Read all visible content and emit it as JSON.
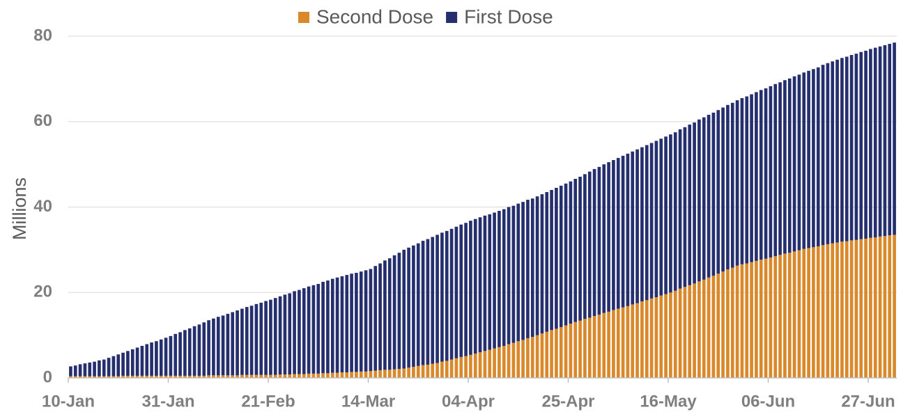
{
  "chart_data": {
    "type": "stacked_bar",
    "y_label": "Millions",
    "ylim": [
      0,
      80
    ],
    "yticks": [
      0,
      20,
      40,
      60,
      80
    ],
    "grid": true,
    "legend": "top",
    "categories": [
      "10-Jan",
      null,
      null,
      null,
      null,
      null,
      null,
      null,
      null,
      null,
      null,
      null,
      null,
      null,
      null,
      null,
      null,
      null,
      null,
      null,
      null,
      "31-Jan",
      null,
      null,
      null,
      null,
      null,
      null,
      null,
      null,
      null,
      null,
      null,
      null,
      null,
      null,
      null,
      null,
      null,
      null,
      null,
      null,
      "21-Feb",
      null,
      null,
      null,
      null,
      null,
      null,
      null,
      null,
      null,
      null,
      null,
      null,
      null,
      null,
      null,
      null,
      null,
      null,
      null,
      null,
      "14-Mar",
      null,
      null,
      null,
      null,
      null,
      null,
      null,
      null,
      null,
      null,
      null,
      null,
      null,
      null,
      null,
      null,
      null,
      null,
      null,
      null,
      "04-Apr",
      null,
      null,
      null,
      null,
      null,
      null,
      null,
      null,
      null,
      null,
      null,
      null,
      null,
      null,
      null,
      null,
      null,
      null,
      null,
      null,
      "25-Apr",
      null,
      null,
      null,
      null,
      null,
      null,
      null,
      null,
      null,
      null,
      null,
      null,
      null,
      null,
      null,
      null,
      null,
      null,
      null,
      null,
      "16-May",
      null,
      null,
      null,
      null,
      null,
      null,
      null,
      null,
      null,
      null,
      null,
      null,
      null,
      null,
      null,
      null,
      null,
      null,
      null,
      null,
      "06-Jun",
      null,
      null,
      null,
      null,
      null,
      null,
      null,
      null,
      null,
      null,
      null,
      null,
      null,
      null,
      null,
      null,
      null,
      null,
      null,
      null,
      "27-Jun",
      null,
      null,
      null,
      null,
      null
    ],
    "series": [
      {
        "name": "Second Dose",
        "color": "#d9882a",
        "values": [
          0.4,
          0.4,
          0.4,
          0.4,
          0.4,
          0.4,
          0.4,
          0.4,
          0.4,
          0.4,
          0.4,
          0.5,
          0.5,
          0.5,
          0.5,
          0.5,
          0.5,
          0.5,
          0.5,
          0.5,
          0.5,
          0.5,
          0.5,
          0.5,
          0.5,
          0.5,
          0.5,
          0.5,
          0.5,
          0.6,
          0.6,
          0.6,
          0.6,
          0.6,
          0.6,
          0.6,
          0.7,
          0.7,
          0.7,
          0.7,
          0.7,
          0.7,
          0.7,
          0.7,
          0.8,
          0.8,
          0.8,
          0.9,
          0.9,
          0.9,
          1.0,
          1.0,
          1.0,
          1.1,
          1.1,
          1.2,
          1.2,
          1.3,
          1.3,
          1.4,
          1.4,
          1.5,
          1.5,
          1.6,
          1.7,
          1.8,
          1.9,
          1.9,
          2.0,
          2.1,
          2.2,
          2.4,
          2.6,
          2.8,
          3.0,
          3.1,
          3.3,
          3.5,
          3.8,
          4.0,
          4.3,
          4.6,
          4.9,
          5.1,
          5.4,
          5.7,
          6.0,
          6.3,
          6.6,
          6.9,
          7.2,
          7.5,
          7.9,
          8.2,
          8.6,
          8.9,
          9.3,
          9.6,
          10.0,
          10.4,
          10.8,
          11.2,
          11.5,
          11.9,
          12.3,
          12.7,
          13.1,
          13.4,
          13.8,
          14.1,
          14.5,
          14.8,
          15.2,
          15.5,
          15.9,
          16.2,
          16.5,
          16.8,
          17.2,
          17.5,
          17.9,
          18.2,
          18.6,
          18.9,
          19.3,
          19.6,
          20.0,
          20.4,
          20.9,
          21.3,
          21.7,
          22.1,
          22.6,
          23.0,
          23.5,
          23.9,
          24.4,
          24.9,
          25.4,
          25.8,
          26.3,
          26.6,
          26.8,
          27.1,
          27.4,
          27.7,
          27.9,
          28.2,
          28.5,
          28.8,
          29.1,
          29.3,
          29.6,
          29.9,
          30.2,
          30.4,
          30.6,
          30.8,
          31.1,
          31.3,
          31.5,
          31.7,
          31.9,
          32.0,
          32.2,
          32.3,
          32.5,
          32.6,
          32.8,
          32.9,
          33.1,
          33.2,
          33.4,
          33.5
        ]
      },
      {
        "name": "First Dose",
        "color": "#262f6e",
        "values": [
          2.3,
          2.5,
          2.8,
          3.0,
          3.2,
          3.4,
          3.7,
          3.9,
          4.3,
          4.7,
          5.1,
          5.4,
          5.8,
          6.2,
          6.6,
          7.0,
          7.4,
          7.8,
          8.1,
          8.5,
          8.9,
          9.3,
          9.8,
          10.2,
          10.7,
          11.1,
          11.6,
          12.0,
          12.5,
          12.9,
          13.3,
          13.7,
          14.0,
          14.4,
          14.8,
          15.2,
          15.5,
          15.9,
          16.2,
          16.6,
          16.9,
          17.3,
          17.6,
          18.0,
          18.3,
          18.7,
          19.0,
          19.4,
          19.7,
          20.1,
          20.4,
          20.7,
          21.0,
          21.4,
          21.7,
          22.0,
          22.3,
          22.5,
          22.8,
          23.0,
          23.2,
          23.4,
          23.7,
          23.9,
          24.5,
          25.0,
          25.6,
          26.1,
          26.7,
          27.2,
          27.8,
          28.1,
          28.4,
          28.7,
          29.1,
          29.4,
          29.7,
          30.0,
          30.2,
          30.4,
          30.6,
          30.8,
          31.0,
          31.2,
          31.4,
          31.5,
          31.6,
          31.7,
          31.7,
          31.8,
          31.9,
          32.0,
          32.1,
          32.1,
          32.2,
          32.3,
          32.4,
          32.4,
          32.5,
          32.6,
          32.7,
          32.8,
          33.0,
          33.1,
          33.2,
          33.3,
          33.5,
          33.7,
          33.9,
          34.2,
          34.4,
          34.6,
          34.8,
          35.0,
          35.1,
          35.3,
          35.5,
          35.7,
          35.8,
          36.0,
          36.1,
          36.3,
          36.4,
          36.6,
          36.7,
          36.9,
          37.0,
          37.1,
          37.3,
          37.4,
          37.6,
          37.7,
          37.9,
          38.0,
          38.1,
          38.2,
          38.3,
          38.4,
          38.5,
          38.6,
          38.7,
          38.9,
          39.1,
          39.3,
          39.5,
          39.7,
          39.9,
          40.1,
          40.3,
          40.4,
          40.6,
          40.8,
          41.0,
          41.1,
          41.3,
          41.5,
          41.7,
          41.9,
          42.2,
          42.4,
          42.6,
          42.8,
          43.0,
          43.2,
          43.4,
          43.6,
          43.8,
          44.0,
          44.2,
          44.4,
          44.5,
          44.7,
          44.8,
          45.0
        ]
      }
    ]
  }
}
